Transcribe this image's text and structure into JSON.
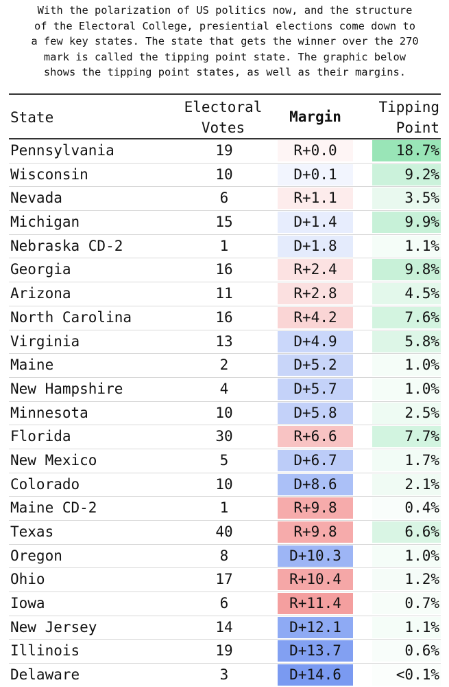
{
  "intro_text": "With the polarization of US politics now, and the structure\nof the Electoral College, presiential elections come down to\na few key states. The state that gets the winner over the 270\nmark is called the tipping point state. The graphic below\nshows the tipping point states, as well as their margins.",
  "chart_data": {
    "type": "table",
    "columns": [
      "State",
      "Electoral\nVotes",
      "Margin",
      "Tipping\nPoint"
    ],
    "rows": [
      {
        "state": "Pennsylvania",
        "ev": "19",
        "margin": "R+0.0",
        "party": "R",
        "margin_value": 0.0,
        "tip": "18.7%",
        "tip_value": 18.7
      },
      {
        "state": "Wisconsin",
        "ev": "10",
        "margin": "D+0.1",
        "party": "D",
        "margin_value": 0.1,
        "tip": "9.2%",
        "tip_value": 9.2
      },
      {
        "state": "Nevada",
        "ev": "6",
        "margin": "R+1.1",
        "party": "R",
        "margin_value": 1.1,
        "tip": "3.5%",
        "tip_value": 3.5
      },
      {
        "state": "Michigan",
        "ev": "15",
        "margin": "D+1.4",
        "party": "D",
        "margin_value": 1.4,
        "tip": "9.9%",
        "tip_value": 9.9
      },
      {
        "state": "Nebraska CD-2",
        "ev": "1",
        "margin": "D+1.8",
        "party": "D",
        "margin_value": 1.8,
        "tip": "1.1%",
        "tip_value": 1.1
      },
      {
        "state": "Georgia",
        "ev": "16",
        "margin": "R+2.4",
        "party": "R",
        "margin_value": 2.4,
        "tip": "9.8%",
        "tip_value": 9.8
      },
      {
        "state": "Arizona",
        "ev": "11",
        "margin": "R+2.8",
        "party": "R",
        "margin_value": 2.8,
        "tip": "4.5%",
        "tip_value": 4.5
      },
      {
        "state": "North Carolina",
        "ev": "16",
        "margin": "R+4.2",
        "party": "R",
        "margin_value": 4.2,
        "tip": "7.6%",
        "tip_value": 7.6
      },
      {
        "state": "Virginia",
        "ev": "13",
        "margin": "D+4.9",
        "party": "D",
        "margin_value": 4.9,
        "tip": "5.8%",
        "tip_value": 5.8
      },
      {
        "state": "Maine",
        "ev": "2",
        "margin": "D+5.2",
        "party": "D",
        "margin_value": 5.2,
        "tip": "1.0%",
        "tip_value": 1.0
      },
      {
        "state": "New Hampshire",
        "ev": "4",
        "margin": "D+5.7",
        "party": "D",
        "margin_value": 5.7,
        "tip": "1.0%",
        "tip_value": 1.0
      },
      {
        "state": "Minnesota",
        "ev": "10",
        "margin": "D+5.8",
        "party": "D",
        "margin_value": 5.8,
        "tip": "2.5%",
        "tip_value": 2.5
      },
      {
        "state": "Florida",
        "ev": "30",
        "margin": "R+6.6",
        "party": "R",
        "margin_value": 6.6,
        "tip": "7.7%",
        "tip_value": 7.7
      },
      {
        "state": "New Mexico",
        "ev": "5",
        "margin": "D+6.7",
        "party": "D",
        "margin_value": 6.7,
        "tip": "1.7%",
        "tip_value": 1.7
      },
      {
        "state": "Colorado",
        "ev": "10",
        "margin": "D+8.6",
        "party": "D",
        "margin_value": 8.6,
        "tip": "2.1%",
        "tip_value": 2.1
      },
      {
        "state": "Maine CD-2",
        "ev": "1",
        "margin": "R+9.8",
        "party": "R",
        "margin_value": 9.8,
        "tip": "0.4%",
        "tip_value": 0.4
      },
      {
        "state": "Texas",
        "ev": "40",
        "margin": "R+9.8",
        "party": "R",
        "margin_value": 9.8,
        "tip": "6.6%",
        "tip_value": 6.6
      },
      {
        "state": "Oregon",
        "ev": "8",
        "margin": "D+10.3",
        "party": "D",
        "margin_value": 10.3,
        "tip": "1.0%",
        "tip_value": 1.0
      },
      {
        "state": "Ohio",
        "ev": "17",
        "margin": "R+10.4",
        "party": "R",
        "margin_value": 10.4,
        "tip": "1.2%",
        "tip_value": 1.2
      },
      {
        "state": "Iowa",
        "ev": "6",
        "margin": "R+11.4",
        "party": "R",
        "margin_value": 11.4,
        "tip": "0.7%",
        "tip_value": 0.7
      },
      {
        "state": "New Jersey",
        "ev": "14",
        "margin": "D+12.1",
        "party": "D",
        "margin_value": 12.1,
        "tip": "1.1%",
        "tip_value": 1.1
      },
      {
        "state": "Illinois",
        "ev": "19",
        "margin": "D+13.7",
        "party": "D",
        "margin_value": 13.7,
        "tip": "0.6%",
        "tip_value": 0.6
      },
      {
        "state": "Delaware",
        "ev": "3",
        "margin": "D+14.6",
        "party": "D",
        "margin_value": 14.6,
        "tip": "<0.1%",
        "tip_value": 0.05
      }
    ],
    "colors": {
      "democrat": "#6b8ff0",
      "republican": "#f07a7a",
      "tipping": "#33cc70"
    }
  }
}
